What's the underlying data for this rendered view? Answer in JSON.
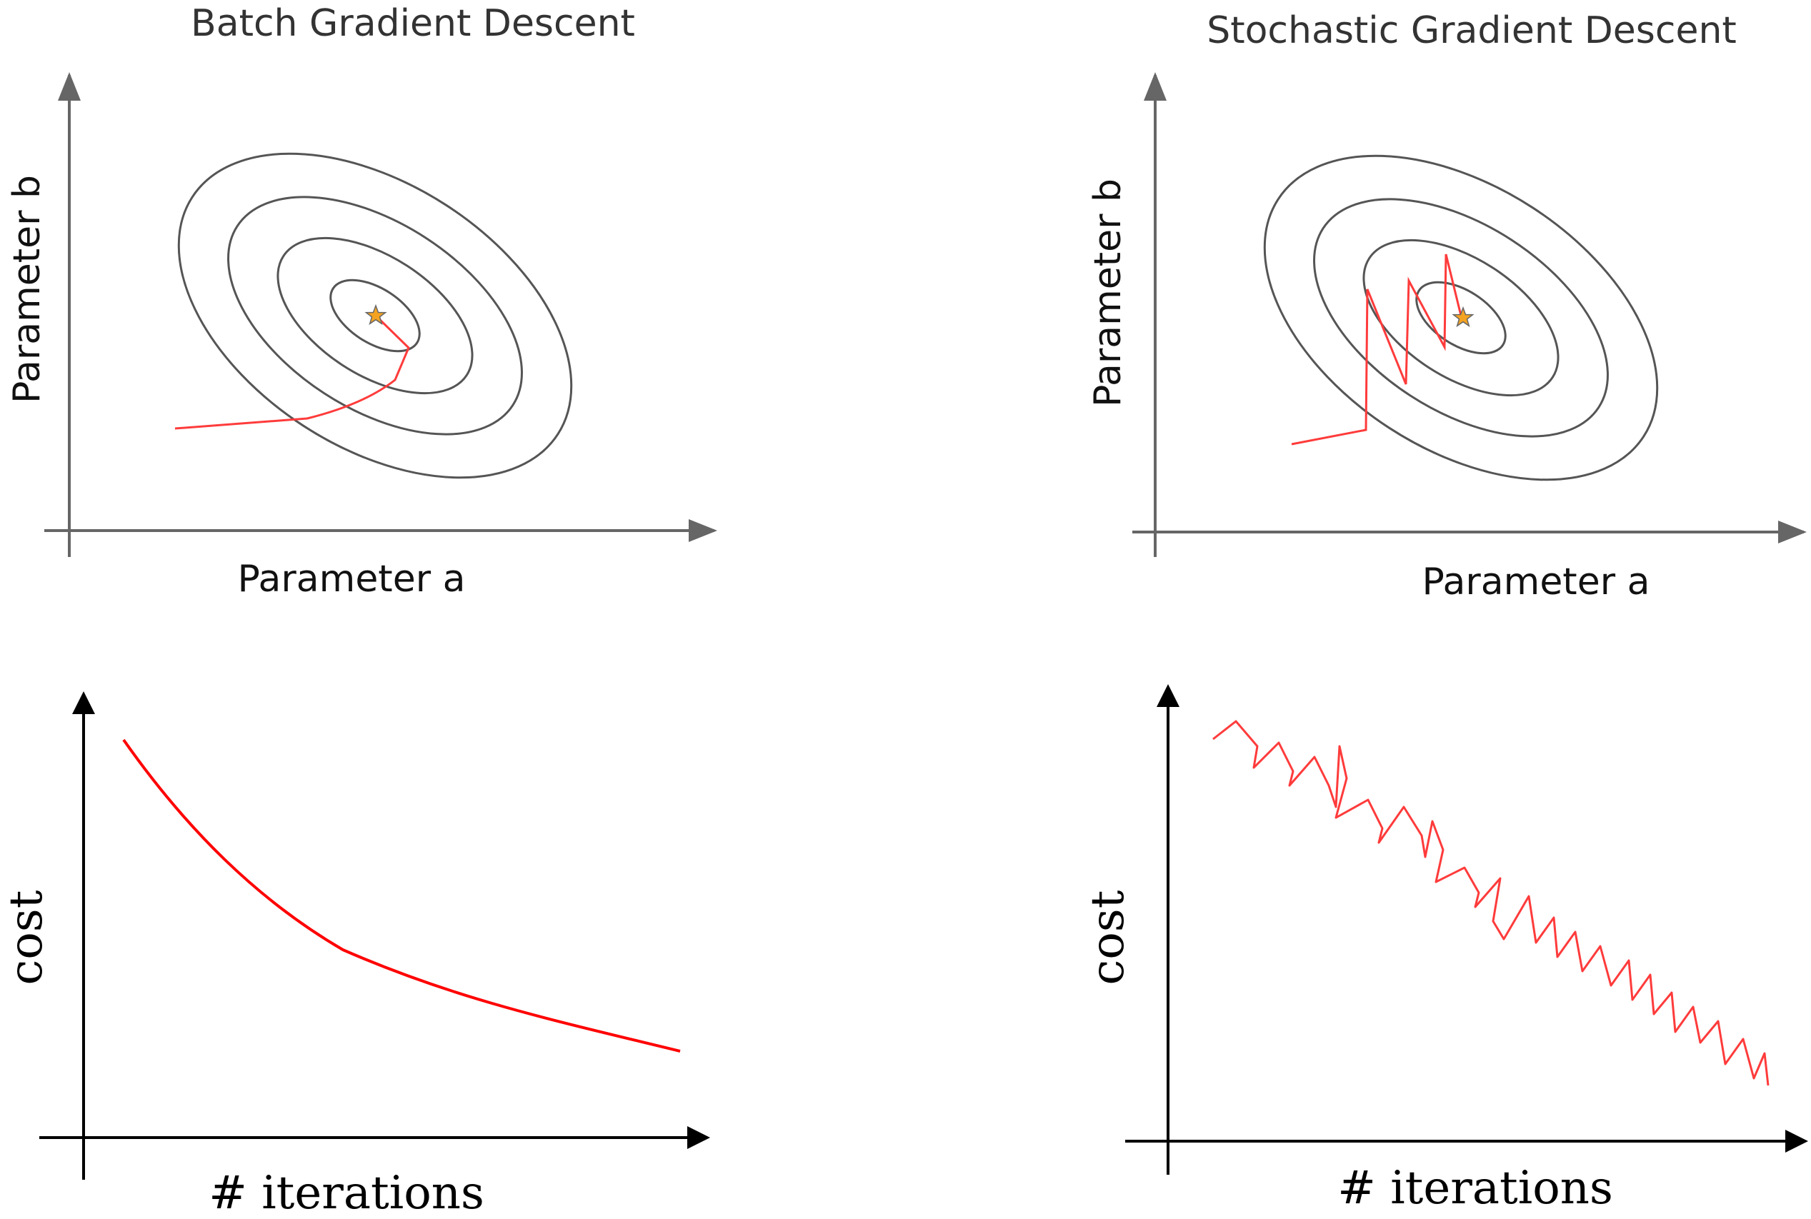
{
  "panels": {
    "batch": {
      "title": "Batch Gradient Descent",
      "xlabel": "Parameter a",
      "ylabel": "Parameter b"
    },
    "stochastic": {
      "title": "Stochastic Gradient Descent",
      "xlabel": "Parameter a",
      "ylabel": "Parameter b"
    }
  },
  "cost_plots": {
    "batch": {
      "xlabel": "# iterations",
      "ylabel": "cost"
    },
    "stochastic": {
      "xlabel": "# iterations",
      "ylabel": "cost"
    }
  },
  "colors": {
    "path": "#ff3b3b",
    "curve": "#ff0000",
    "contour": "#555555",
    "axis_gray": "#666666",
    "axis_black": "#000000",
    "star_fill": "#f4a321",
    "star_stroke": "#666666"
  },
  "icons": {
    "minimum_marker": "star-icon"
  }
}
